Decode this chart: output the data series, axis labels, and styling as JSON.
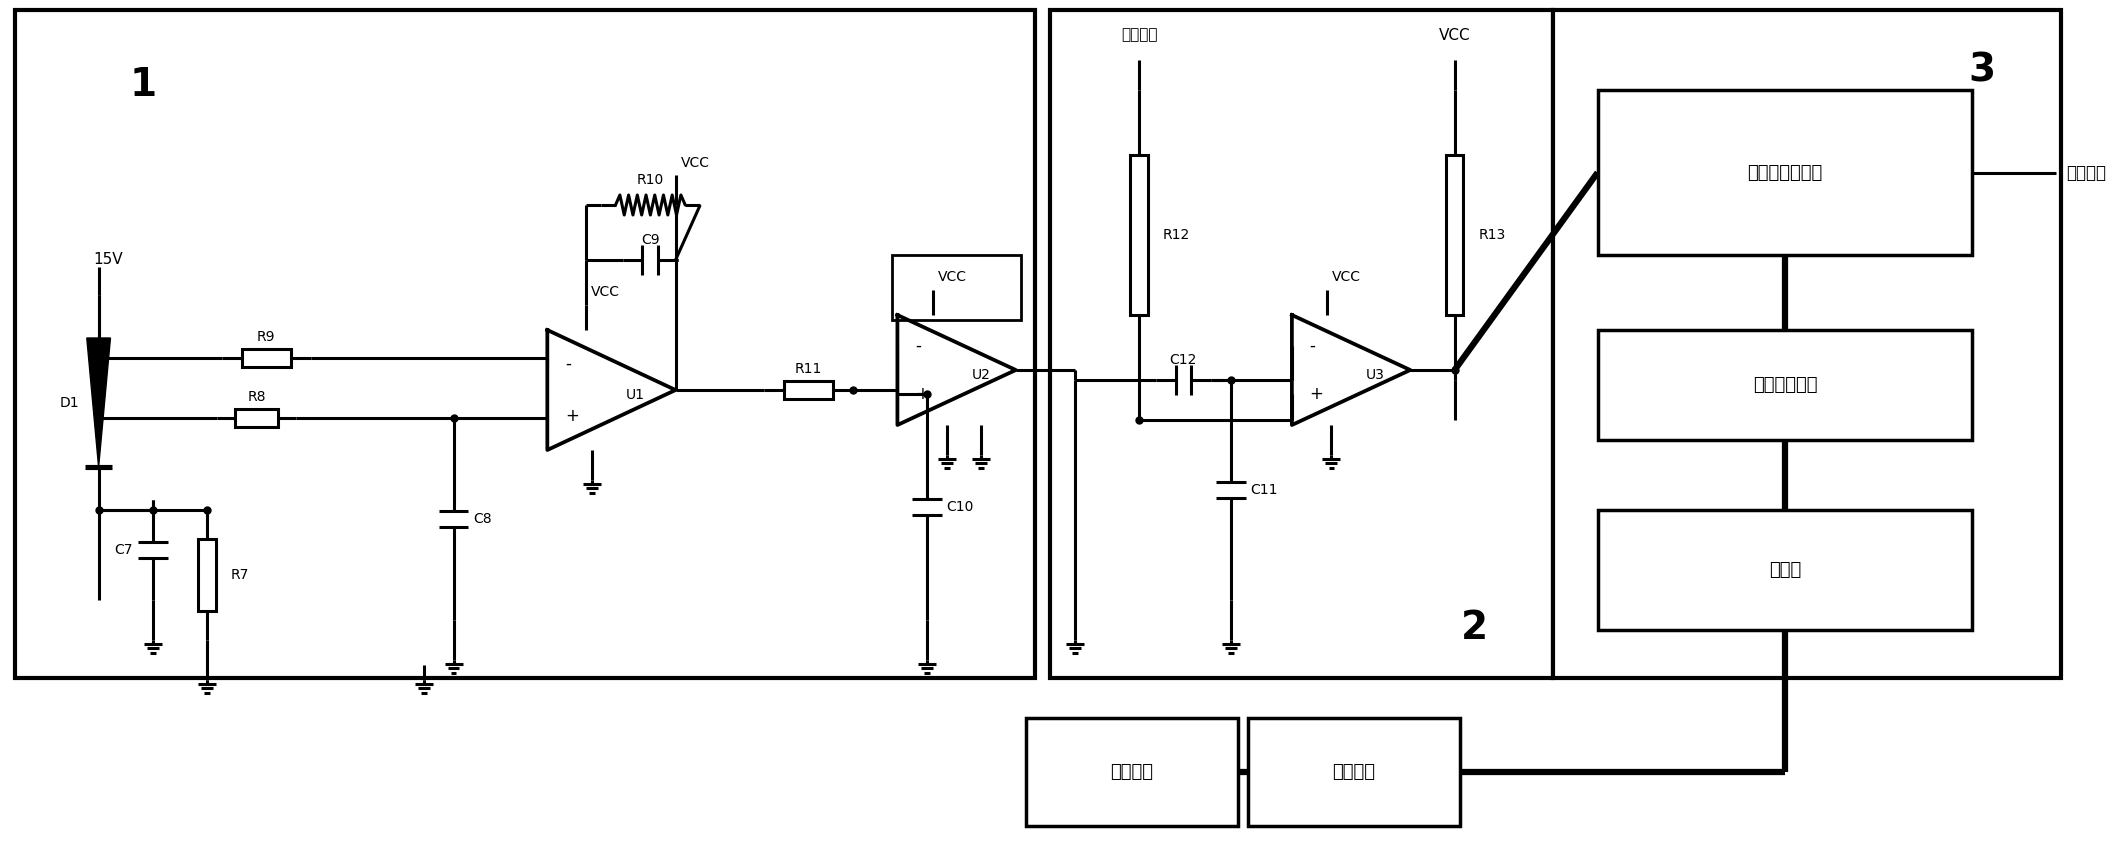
{
  "bg_color": "#ffffff",
  "line_color": "#000000",
  "lw": 2.2,
  "lw_thick": 4.5,
  "fig_w": 21.09,
  "fig_h": 8.56,
  "box1_label": "1",
  "box2_label": "2",
  "box3_label": "3",
  "label_15V": "15V",
  "label_D1": "D1",
  "label_R7": "R7",
  "label_C7": "C7",
  "label_R8": "R8",
  "label_R9": "R9",
  "label_C8": "C8",
  "label_R10": "R10",
  "label_C9": "C9",
  "label_VCC_u1": "VCC",
  "label_U1": "U1",
  "label_R11": "R11",
  "label_VCC_u2": "VCC",
  "label_U2": "U2",
  "label_C10": "C10",
  "label_bias": "偏置电压",
  "label_R12": "R12",
  "label_C11": "C11",
  "label_C12": "C12",
  "label_VCC_u3a": "VCC",
  "label_VCC_u3b": "VCC",
  "label_R13": "R13",
  "label_U3": "U3",
  "label_mono": "单稳态触发芯片",
  "label_pot": "可调达电位器",
  "label_mcu": "单片机",
  "label_optics": "光学模块",
  "label_circuit": "电路模块",
  "label_sigout": "信号输出"
}
